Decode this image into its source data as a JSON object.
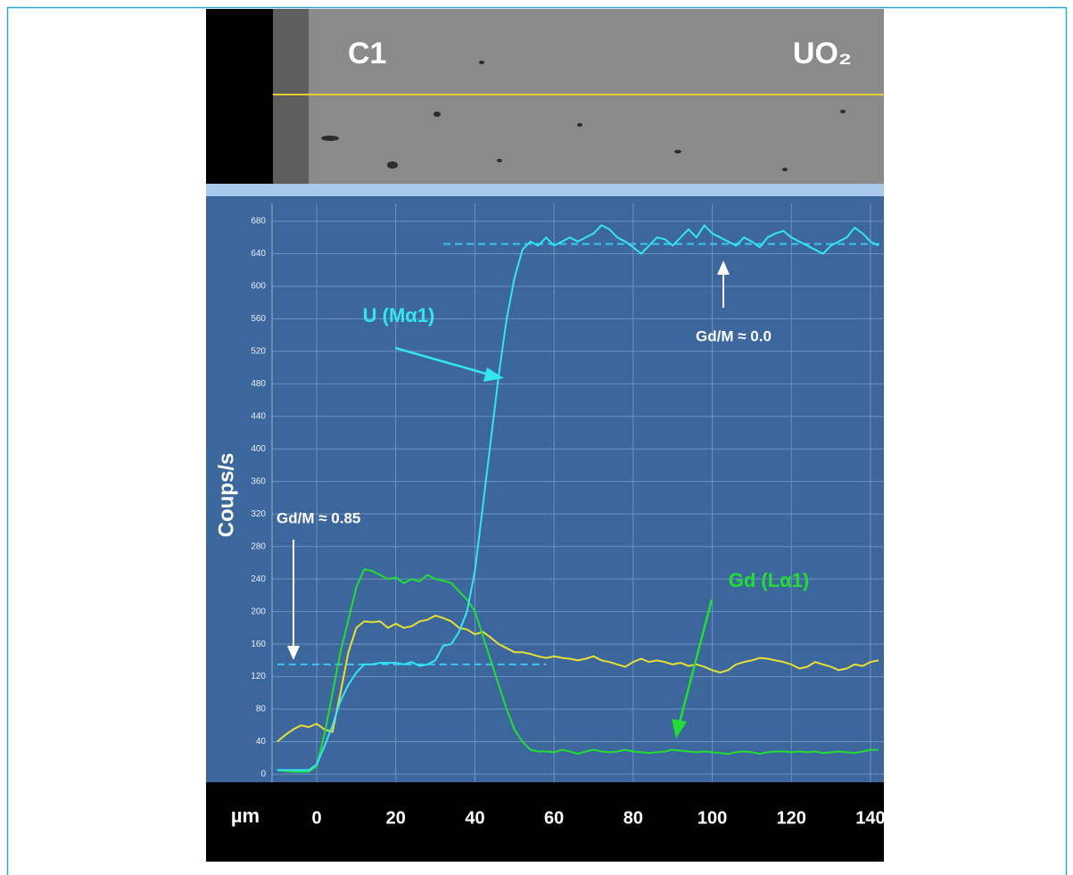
{
  "micrograph": {
    "labels": [
      "C1",
      "UO₂"
    ]
  },
  "chart_data": {
    "type": "line",
    "y_label": "Coups/s",
    "x_label": "µm",
    "xlim": [
      -11.3,
      143.4
    ],
    "ylim": [
      0,
      680
    ],
    "xticks": [
      0,
      20,
      40,
      60,
      80,
      100,
      120,
      140
    ],
    "yticks": [
      0,
      40,
      80,
      120,
      160,
      200,
      240,
      280,
      320,
      360,
      400,
      440,
      480,
      520,
      560,
      600,
      640,
      680
    ],
    "grid": true,
    "x": [
      -10,
      -8,
      -6,
      -4,
      -2,
      0,
      2,
      4,
      6,
      8,
      10,
      12,
      14,
      16,
      18,
      20,
      22,
      24,
      26,
      28,
      30,
      32,
      34,
      36,
      38,
      40,
      42,
      44,
      46,
      48,
      50,
      52,
      54,
      56,
      58,
      60,
      62,
      64,
      66,
      68,
      70,
      72,
      74,
      76,
      78,
      80,
      82,
      84,
      86,
      88,
      90,
      92,
      94,
      96,
      98,
      100,
      102,
      104,
      106,
      108,
      110,
      112,
      114,
      116,
      118,
      120,
      122,
      124,
      126,
      128,
      130,
      132,
      134,
      136,
      138,
      140,
      142
    ],
    "series": [
      {
        "name": "U (Mα1)",
        "color": "#35e4f2",
        "values": [
          5,
          5,
          5,
          5,
          5,
          12,
          35,
          60,
          90,
          110,
          125,
          135,
          135,
          137,
          137,
          137,
          135,
          138,
          133,
          135,
          140,
          158,
          160,
          175,
          200,
          250,
          330,
          410,
          490,
          560,
          610,
          645,
          655,
          650,
          660,
          650,
          655,
          660,
          655,
          660,
          665,
          675,
          670,
          660,
          655,
          648,
          640,
          650,
          660,
          658,
          650,
          660,
          670,
          660,
          675,
          665,
          660,
          655,
          650,
          660,
          655,
          648,
          660,
          665,
          668,
          660,
          655,
          650,
          645,
          640,
          650,
          655,
          660,
          672,
          665,
          655,
          650
        ]
      },
      {
        "name": "Gd (Lα1)",
        "color": "#22dd33",
        "values": [
          5,
          4,
          3,
          3,
          3,
          10,
          50,
          100,
          150,
          190,
          230,
          252,
          250,
          245,
          240,
          242,
          235,
          240,
          237,
          245,
          240,
          238,
          235,
          225,
          215,
          200,
          170,
          140,
          110,
          80,
          55,
          40,
          30,
          28,
          28,
          27,
          30,
          28,
          25,
          28,
          30,
          28,
          27,
          28,
          30,
          28,
          27,
          26,
          27,
          28,
          30,
          29,
          28,
          27,
          28,
          27,
          26,
          25,
          27,
          28,
          27,
          25,
          27,
          28,
          28,
          27,
          28,
          27,
          28,
          26,
          27,
          28,
          27,
          26,
          28,
          30,
          30
        ]
      },
      {
        "color": "#e6e035",
        "values": [
          40,
          48,
          55,
          60,
          58,
          62,
          55,
          52,
          100,
          150,
          180,
          188,
          187,
          188,
          180,
          185,
          180,
          182,
          188,
          190,
          195,
          192,
          188,
          180,
          178,
          172,
          175,
          168,
          160,
          155,
          150,
          150,
          148,
          145,
          143,
          145,
          143,
          142,
          140,
          142,
          145,
          140,
          138,
          135,
          132,
          138,
          142,
          138,
          140,
          138,
          135,
          137,
          133,
          135,
          132,
          128,
          125,
          128,
          135,
          138,
          140,
          143,
          142,
          140,
          138,
          135,
          130,
          132,
          138,
          135,
          132,
          128,
          130,
          135,
          133,
          138,
          140
        ]
      }
    ],
    "reference_lines": [
      {
        "y": 135,
        "x": [
          -10,
          58
        ],
        "color": "#3ac8f0"
      },
      {
        "y": 652,
        "x": [
          32,
          143
        ],
        "color": "#3ac8f0"
      }
    ],
    "annotations": [
      {
        "text": "Gd/M ≈ 0.85"
      },
      {
        "text": "Gd/M ≈ 0.0"
      }
    ]
  }
}
